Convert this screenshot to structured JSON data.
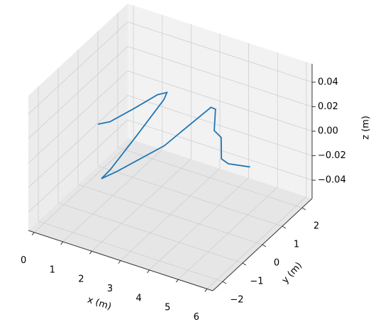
{
  "chart_data": {
    "type": "line3d",
    "xlabel": "x (m)",
    "ylabel": "y (m)",
    "zlabel": "z (m)",
    "xlim": [
      -0.2,
      6.2
    ],
    "ylim": [
      -2.5,
      2.5
    ],
    "zlim": [
      -0.055,
      0.055
    ],
    "xticks": [
      0,
      1,
      2,
      3,
      4,
      5,
      6
    ],
    "yticks": [
      {
        "value": -2,
        "label": "−2"
      },
      {
        "value": -1,
        "label": "−1"
      },
      0,
      1,
      2
    ],
    "zticks": [
      {
        "value": -0.04,
        "label": "−0.04"
      },
      {
        "value": -0.02,
        "label": "−0.02"
      },
      {
        "value": 0,
        "label": "0.00"
      },
      0.02,
      0.04
    ],
    "grid": true,
    "series": [
      {
        "color": "#1f77b4",
        "x": [
          0.68,
          1.09,
          1.68,
          2.24,
          2.59,
          2.54,
          1.82,
          1.07,
          0.75,
          1.12,
          2.47,
          3.96,
          4.13,
          4.01,
          4.21,
          4.13,
          4.27,
          4.75
        ],
        "y": [
          -0.27,
          -0.26,
          0.09,
          0.46,
          0.43,
          0.35,
          0.03,
          -0.23,
          -0.2,
          0.05,
          0.47,
          0.66,
          0.64,
          0.75,
          0.81,
          0.94,
          1.08,
          1.48
        ],
        "z": [
          0.005,
          0.01,
          0.02,
          0.03,
          0.035,
          0.03,
          0.0,
          -0.03,
          -0.04,
          -0.035,
          -0.01,
          0.03,
          0.03,
          0.01,
          0.005,
          -0.015,
          -0.02,
          -0.025
        ]
      }
    ]
  }
}
